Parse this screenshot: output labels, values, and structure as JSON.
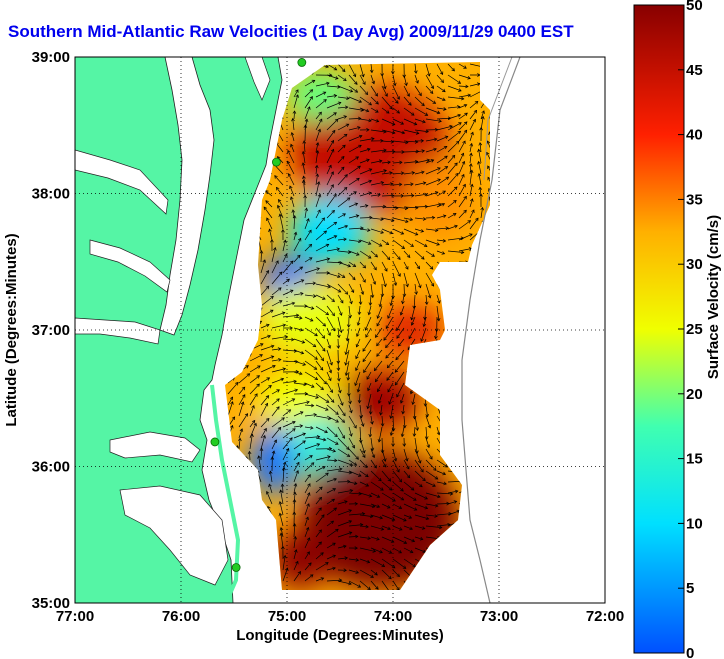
{
  "title": "Southern Mid-Atlantic Raw Velocities (1 Day Avg) 2009/11/29 0400 EST",
  "x_axis": {
    "label": "Longitude (Degrees:Minutes)",
    "ticks": [
      {
        "value": -77,
        "label": "77:00"
      },
      {
        "value": -76,
        "label": "76:00"
      },
      {
        "value": -75,
        "label": "75:00"
      },
      {
        "value": -74,
        "label": "74:00"
      },
      {
        "value": -73,
        "label": "73:00"
      },
      {
        "value": -72,
        "label": "72:00"
      }
    ]
  },
  "y_axis": {
    "label": "Latitude (Degrees:Minutes)",
    "ticks": [
      {
        "value": 35,
        "label": "35:00"
      },
      {
        "value": 36,
        "label": "36:00"
      },
      {
        "value": 37,
        "label": "37:00"
      },
      {
        "value": 38,
        "label": "38:00"
      },
      {
        "value": 39,
        "label": "39:00"
      }
    ]
  },
  "colorbar": {
    "label": "Surface Velocity (cm/s)",
    "min": 0,
    "max": 50,
    "ticks": [
      {
        "value": 0,
        "label": "0"
      },
      {
        "value": 5,
        "label": "5"
      },
      {
        "value": 10,
        "label": "10"
      },
      {
        "value": 15,
        "label": "15"
      },
      {
        "value": 20,
        "label": "20"
      },
      {
        "value": 25,
        "label": "25"
      },
      {
        "value": 30,
        "label": "30"
      },
      {
        "value": 35,
        "label": "35"
      },
      {
        "value": 40,
        "label": "40"
      },
      {
        "value": 45,
        "label": "45"
      },
      {
        "value": 50,
        "label": "50"
      }
    ]
  },
  "colors": {
    "land": "#55f5a5",
    "water": "#ffffff",
    "title": "#0000ee",
    "radar_sites": "#22cc22"
  },
  "grid": "dotted",
  "radar_sites": [
    {
      "lon": -74.86,
      "lat": 38.96
    },
    {
      "lon": -75.1,
      "lat": 38.23
    },
    {
      "lon": -75.68,
      "lat": 36.18
    },
    {
      "lon": -75.48,
      "lat": 35.26
    }
  ]
}
